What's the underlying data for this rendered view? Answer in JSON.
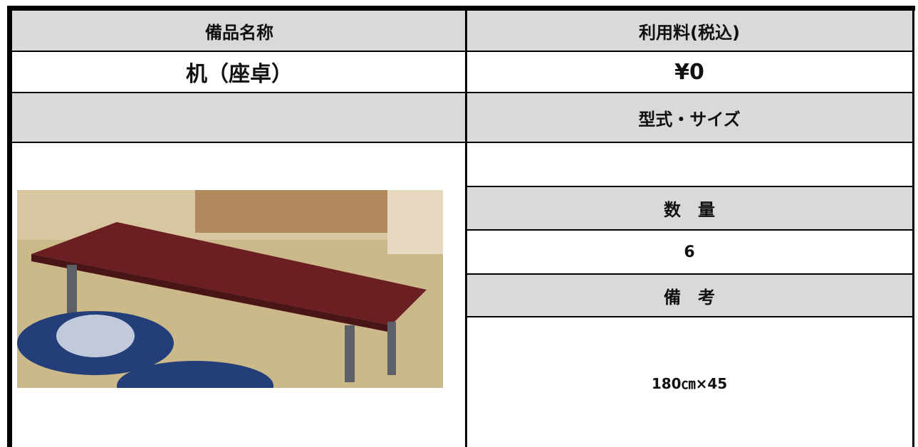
{
  "table": {
    "header": {
      "name_label": "備品名称",
      "fee_label": "利用料(税込)"
    },
    "item_name": "机（座卓）",
    "fee": "¥0",
    "model_size_label": "型式・サイズ",
    "quantity_label": "数　量",
    "quantity": "6",
    "remarks_label": "備　考",
    "remarks": "180㎝×45"
  }
}
